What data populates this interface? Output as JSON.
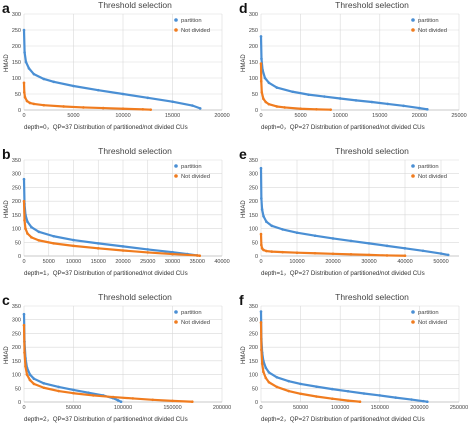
{
  "colors": {
    "partition": "#4a8fd4",
    "not_divided": "#f07c1f",
    "grid": "#d9d9d9",
    "axis": "#bfbfbf"
  },
  "chart_data": [
    {
      "letter": "a",
      "type": "scatter",
      "title": "Threshold selection",
      "ylabel": "HMAD",
      "xlabel": "depth=0，QP=37 Distribution of partitioned/not divided CUs",
      "xlim": [
        0,
        20000
      ],
      "ylim": [
        0,
        300
      ],
      "xticks": [
        0,
        5000,
        10000,
        15000,
        20000
      ],
      "yticks": [
        0,
        50,
        100,
        150,
        200,
        250,
        300
      ],
      "legend_position": "top-right",
      "series": [
        {
          "name": "partition",
          "color": "#4a8fd4",
          "x": [
            0,
            60,
            200,
            500,
            1000,
            2000,
            3000,
            5000,
            7500,
            10000,
            12500,
            15000,
            17000,
            17800
          ],
          "y": [
            250,
            180,
            150,
            130,
            112,
            97,
            88,
            75,
            62,
            50,
            38,
            26,
            14,
            5
          ]
        },
        {
          "name": "Not divided",
          "color": "#f07c1f",
          "x": [
            0,
            30,
            100,
            300,
            600,
            1000,
            2000,
            4000,
            6000,
            8000,
            10000,
            12000,
            12800
          ],
          "y": [
            85,
            55,
            40,
            28,
            22,
            19,
            15,
            11,
            8,
            6,
            4,
            2,
            1
          ]
        }
      ]
    },
    {
      "letter": "d",
      "type": "scatter",
      "title": "Threshold selection",
      "ylabel": "HMAD",
      "xlabel": "depth=0，QP=27 Distribution of partitioned/not divided CUs",
      "xlim": [
        0,
        25000
      ],
      "ylim": [
        0,
        300
      ],
      "xticks": [
        0,
        5000,
        10000,
        15000,
        20000,
        25000
      ],
      "yticks": [
        0,
        50,
        100,
        150,
        200,
        250,
        300
      ],
      "legend_position": "top-right",
      "series": [
        {
          "name": "partition",
          "color": "#4a8fd4",
          "x": [
            0,
            60,
            200,
            500,
            1000,
            2000,
            4000,
            6000,
            8000,
            10000,
            12000,
            14000,
            16000,
            18000,
            20000,
            21000
          ],
          "y": [
            230,
            160,
            125,
            100,
            85,
            70,
            57,
            48,
            42,
            36,
            30,
            25,
            19,
            13,
            6,
            2
          ]
        },
        {
          "name": "Not divided",
          "color": "#f07c1f",
          "x": [
            0,
            30,
            100,
            300,
            600,
            1000,
            2000,
            3000,
            5000,
            7000,
            8800
          ],
          "y": [
            145,
            90,
            55,
            35,
            25,
            18,
            11,
            8,
            4,
            2,
            1
          ]
        }
      ]
    },
    {
      "letter": "b",
      "type": "scatter",
      "title": "Threshold selection",
      "ylabel": "HMAD",
      "xlabel": "depth=1，QP=37 Distribution of partitioned/not divided CUs",
      "xlim": [
        0,
        40000
      ],
      "ylim": [
        0,
        350
      ],
      "xticks": [
        0,
        5000,
        10000,
        15000,
        20000,
        25000,
        30000,
        35000,
        40000
      ],
      "yticks": [
        0,
        50,
        100,
        150,
        200,
        250,
        300,
        350
      ],
      "legend_position": "top-right",
      "series": [
        {
          "name": "partition",
          "color": "#4a8fd4",
          "x": [
            0,
            100,
            300,
            700,
            1500,
            3000,
            6000,
            10000,
            15000,
            20000,
            25000,
            30000,
            33000,
            35000
          ],
          "y": [
            280,
            190,
            150,
            125,
            105,
            88,
            72,
            58,
            46,
            35,
            24,
            14,
            7,
            2
          ]
        },
        {
          "name": "Not divided",
          "color": "#f07c1f",
          "x": [
            0,
            100,
            300,
            700,
            1500,
            3000,
            6000,
            10000,
            15000,
            20000,
            25000,
            30000,
            35000,
            35500
          ],
          "y": [
            200,
            130,
            100,
            82,
            68,
            57,
            46,
            37,
            28,
            20,
            13,
            7,
            2,
            1
          ]
        }
      ]
    },
    {
      "letter": "e",
      "type": "scatter",
      "title": "Threshold selection",
      "ylabel": "HMAD",
      "xlabel": "depth=1，QP=27 Distribution of partitioned/not divided CUs",
      "xlim": [
        0,
        55000
      ],
      "ylim": [
        0,
        350
      ],
      "xticks": [
        0,
        10000,
        20000,
        30000,
        40000,
        50000
      ],
      "yticks": [
        0,
        50,
        100,
        150,
        200,
        250,
        300,
        350
      ],
      "legend_position": "top-right",
      "series": [
        {
          "name": "partition",
          "color": "#4a8fd4",
          "x": [
            0,
            100,
            300,
            700,
            1500,
            3000,
            6000,
            10000,
            15000,
            20000,
            25000,
            30000,
            35000,
            40000,
            45000,
            50000,
            52000
          ],
          "y": [
            320,
            210,
            170,
            145,
            125,
            110,
            97,
            85,
            74,
            64,
            55,
            46,
            37,
            28,
            19,
            9,
            4
          ]
        },
        {
          "name": "Not divided",
          "color": "#f07c1f",
          "x": [
            0,
            100,
            300,
            700,
            1500,
            3000,
            6000,
            10000,
            15000,
            20000,
            25000,
            30000,
            35000,
            40000
          ],
          "y": [
            80,
            40,
            28,
            22,
            18,
            16,
            14,
            12,
            10,
            8,
            6,
            4,
            2,
            1
          ]
        }
      ]
    },
    {
      "letter": "c",
      "type": "scatter",
      "title": "Threshold selection",
      "ylabel": "HMAD",
      "xlabel": "depth=2，QP=37 Distribution of partitioned/not divided CUs",
      "xlim": [
        0,
        200000
      ],
      "ylim": [
        0,
        350
      ],
      "xticks": [
        0,
        50000,
        100000,
        150000,
        200000
      ],
      "yticks": [
        0,
        50,
        100,
        150,
        200,
        250,
        300,
        350
      ],
      "legend_position": "top-right",
      "series": [
        {
          "name": "partition",
          "color": "#4a8fd4",
          "x": [
            0,
            500,
            1500,
            3000,
            6000,
            10000,
            20000,
            35000,
            50000,
            65000,
            80000,
            90000,
            95000,
            98000
          ],
          "y": [
            320,
            220,
            160,
            125,
            100,
            85,
            68,
            55,
            44,
            34,
            24,
            14,
            6,
            1
          ]
        },
        {
          "name": "Not divided",
          "color": "#f07c1f",
          "x": [
            0,
            500,
            1500,
            3000,
            6000,
            10000,
            20000,
            35000,
            50000,
            70000,
            90000,
            110000,
            130000,
            150000,
            170000
          ],
          "y": [
            280,
            180,
            130,
            100,
            80,
            66,
            52,
            40,
            32,
            24,
            18,
            13,
            8,
            4,
            1
          ]
        }
      ]
    },
    {
      "letter": "f",
      "type": "scatter",
      "title": "Threshold selection",
      "ylabel": "HMAD",
      "xlabel": "depth=2，QP=27 Distribution of partitioned/not divided CUs",
      "xlim": [
        0,
        250000
      ],
      "ylim": [
        0,
        350
      ],
      "xticks": [
        0,
        50000,
        100000,
        150000,
        200000,
        250000
      ],
      "yticks": [
        0,
        50,
        100,
        150,
        200,
        250,
        300,
        350
      ],
      "legend_position": "top-right",
      "series": [
        {
          "name": "partition",
          "color": "#4a8fd4",
          "x": [
            0,
            500,
            1500,
            3000,
            6000,
            10000,
            20000,
            35000,
            50000,
            70000,
            90000,
            110000,
            130000,
            150000,
            170000,
            190000,
            205000,
            210000
          ],
          "y": [
            330,
            230,
            180,
            150,
            125,
            108,
            90,
            76,
            66,
            56,
            47,
            39,
            31,
            24,
            16,
            9,
            3,
            1
          ]
        },
        {
          "name": "Not divided",
          "color": "#f07c1f",
          "x": [
            0,
            500,
            1500,
            3000,
            6000,
            10000,
            20000,
            35000,
            50000,
            70000,
            90000,
            110000,
            125000
          ],
          "y": [
            290,
            190,
            140,
            110,
            88,
            72,
            55,
            40,
            30,
            20,
            12,
            5,
            1
          ]
        }
      ]
    }
  ]
}
